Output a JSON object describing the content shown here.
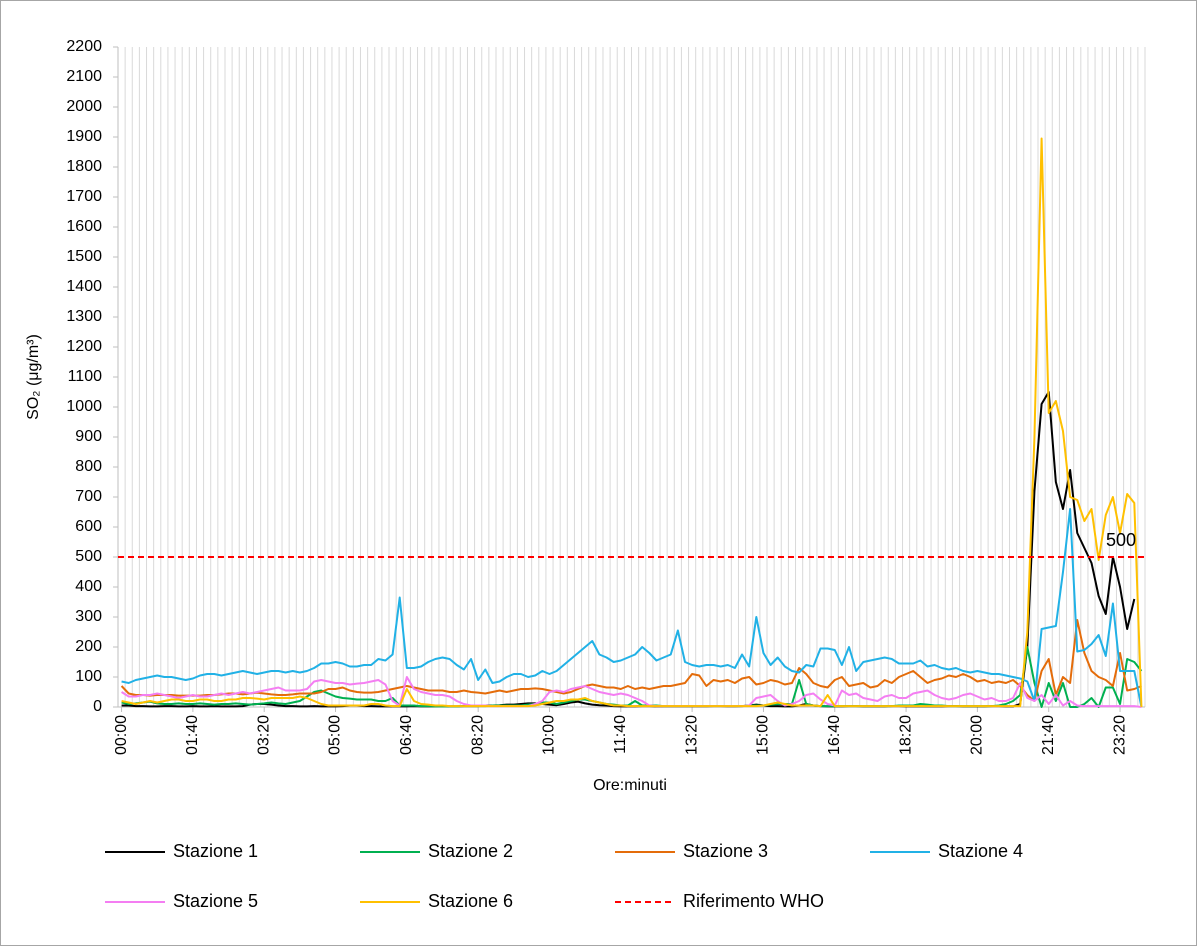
{
  "chart_data": {
    "type": "line",
    "ylabel": "SO₂ (μg/m³)",
    "xlabel": "Ore:minuti",
    "ylim": [
      0,
      2200
    ],
    "yticks": [
      0,
      100,
      200,
      300,
      400,
      500,
      600,
      700,
      800,
      900,
      1000,
      1100,
      1200,
      1300,
      1400,
      1500,
      1600,
      1700,
      1800,
      1900,
      2000,
      2100,
      2200
    ],
    "grid": "vertical",
    "categories": [
      "00:00",
      null,
      null,
      null,
      null,
      null,
      null,
      null,
      null,
      null,
      "01:40",
      null,
      null,
      null,
      null,
      null,
      null,
      null,
      null,
      null,
      "03:20",
      null,
      null,
      null,
      null,
      null,
      null,
      null,
      null,
      null,
      "05:00",
      null,
      null,
      null,
      null,
      null,
      null,
      null,
      null,
      null,
      "06:40",
      null,
      null,
      null,
      null,
      null,
      null,
      null,
      null,
      null,
      "08:20",
      null,
      null,
      null,
      null,
      null,
      null,
      null,
      null,
      null,
      "10:00",
      null,
      null,
      null,
      null,
      null,
      null,
      null,
      null,
      null,
      "11:40",
      null,
      null,
      null,
      null,
      null,
      null,
      null,
      null,
      null,
      "13:20",
      null,
      null,
      null,
      null,
      null,
      null,
      null,
      null,
      null,
      "15:00",
      null,
      null,
      null,
      null,
      null,
      null,
      null,
      null,
      null,
      "16:40",
      null,
      null,
      null,
      null,
      null,
      null,
      null,
      null,
      null,
      "18:20",
      null,
      null,
      null,
      null,
      null,
      null,
      null,
      null,
      null,
      "20:00",
      null,
      null,
      null,
      null,
      null,
      null,
      null,
      null,
      null,
      "21:40",
      null,
      null,
      null,
      null,
      null,
      null,
      null,
      null,
      null,
      "23:20",
      null,
      null,
      null
    ],
    "series": [
      {
        "name": "Stazione 1",
        "color": "#000000",
        "values": [
          5,
          5,
          3,
          3,
          2,
          2,
          3,
          3,
          2,
          2,
          3,
          2,
          2,
          3,
          2,
          2,
          2,
          3,
          8,
          10,
          10,
          8,
          5,
          3,
          3,
          2,
          2,
          3,
          2,
          2,
          2,
          3,
          5,
          5,
          3,
          3,
          2,
          2,
          2,
          2,
          2,
          3,
          2,
          2,
          2,
          3,
          2,
          2,
          3,
          3,
          3,
          5,
          5,
          6,
          8,
          8,
          10,
          12,
          12,
          10,
          8,
          6,
          10,
          15,
          18,
          12,
          8,
          6,
          5,
          3,
          2,
          2,
          2,
          3,
          3,
          2,
          2,
          2,
          2,
          2,
          2,
          2,
          2,
          3,
          3,
          2,
          2,
          3,
          5,
          8,
          5,
          3,
          3,
          2,
          2,
          5,
          10,
          5,
          3,
          2,
          2,
          2,
          3,
          3,
          2,
          2,
          2,
          2,
          3,
          3,
          2,
          2,
          2,
          2,
          2,
          2,
          3,
          3,
          2,
          2,
          2,
          2,
          3,
          3,
          2,
          2,
          10,
          200,
          720,
          1010,
          1050,
          750,
          660,
          790,
          580,
          530,
          480,
          370,
          310,
          500,
          400,
          260,
          360,
          null
        ]
      },
      {
        "name": "Stazione 2",
        "color": "#00b050",
        "values": [
          15,
          10,
          12,
          15,
          18,
          12,
          10,
          10,
          12,
          10,
          10,
          12,
          10,
          8,
          10,
          10,
          12,
          10,
          8,
          10,
          12,
          15,
          12,
          10,
          15,
          20,
          35,
          50,
          55,
          45,
          35,
          30,
          28,
          25,
          25,
          25,
          20,
          20,
          30,
          5,
          5,
          5,
          3,
          3,
          2,
          2,
          2,
          2,
          3,
          3,
          3,
          3,
          5,
          5,
          5,
          5,
          5,
          8,
          10,
          15,
          15,
          10,
          15,
          20,
          25,
          25,
          20,
          15,
          10,
          8,
          5,
          5,
          20,
          5,
          5,
          5,
          3,
          3,
          3,
          3,
          3,
          3,
          3,
          3,
          3,
          3,
          3,
          3,
          5,
          5,
          5,
          8,
          10,
          10,
          10,
          90,
          10,
          5,
          3,
          3,
          3,
          3,
          3,
          3,
          3,
          3,
          3,
          3,
          3,
          5,
          5,
          5,
          10,
          8,
          5,
          5,
          3,
          3,
          3,
          3,
          3,
          3,
          3,
          5,
          10,
          20,
          40,
          200,
          80,
          0,
          80,
          20,
          80,
          0,
          0,
          10,
          30,
          0,
          65,
          65,
          10,
          160,
          150,
          120
        ]
      },
      {
        "name": "Stazione 3",
        "color": "#e46c0a",
        "values": [
          70,
          45,
          40,
          40,
          38,
          40,
          40,
          40,
          38,
          38,
          38,
          38,
          40,
          40,
          42,
          45,
          45,
          42,
          45,
          48,
          45,
          42,
          40,
          40,
          42,
          45,
          45,
          45,
          50,
          60,
          60,
          65,
          55,
          50,
          48,
          48,
          50,
          55,
          60,
          65,
          70,
          65,
          60,
          55,
          55,
          55,
          50,
          50,
          55,
          50,
          48,
          45,
          50,
          55,
          50,
          55,
          60,
          60,
          62,
          60,
          55,
          50,
          45,
          50,
          60,
          70,
          75,
          70,
          65,
          65,
          60,
          70,
          60,
          65,
          60,
          65,
          70,
          70,
          75,
          80,
          110,
          105,
          70,
          90,
          85,
          90,
          80,
          95,
          100,
          75,
          80,
          90,
          85,
          75,
          80,
          130,
          110,
          80,
          70,
          65,
          90,
          100,
          70,
          75,
          80,
          65,
          70,
          90,
          80,
          100,
          110,
          120,
          100,
          80,
          90,
          95,
          105,
          100,
          110,
          100,
          85,
          90,
          80,
          85,
          80,
          90,
          70,
          40,
          20,
          120,
          160,
          40,
          100,
          80,
          290,
          180,
          120,
          100,
          90,
          70,
          180,
          55,
          60,
          70
        ]
      },
      {
        "name": "Stazione 4",
        "color": "#21b1e6",
        "values": [
          85,
          80,
          90,
          95,
          100,
          105,
          100,
          100,
          95,
          90,
          95,
          105,
          110,
          110,
          105,
          110,
          115,
          120,
          115,
          110,
          115,
          120,
          120,
          115,
          120,
          115,
          120,
          130,
          145,
          145,
          150,
          145,
          135,
          135,
          140,
          140,
          160,
          155,
          175,
          365,
          130,
          130,
          135,
          150,
          160,
          165,
          160,
          140,
          125,
          160,
          90,
          125,
          80,
          85,
          100,
          110,
          110,
          100,
          105,
          120,
          110,
          120,
          140,
          160,
          180,
          200,
          220,
          175,
          165,
          150,
          155,
          165,
          175,
          200,
          180,
          155,
          165,
          175,
          255,
          150,
          140,
          135,
          140,
          140,
          135,
          140,
          130,
          175,
          135,
          300,
          180,
          140,
          165,
          135,
          120,
          115,
          140,
          135,
          195,
          195,
          190,
          140,
          200,
          120,
          150,
          155,
          160,
          165,
          160,
          145,
          145,
          145,
          155,
          135,
          140,
          130,
          125,
          130,
          120,
          115,
          120,
          115,
          110,
          110,
          105,
          100,
          95,
          85,
          20,
          260,
          265,
          270,
          450,
          660,
          185,
          190,
          210,
          240,
          170,
          345,
          120,
          120,
          120,
          0
        ]
      },
      {
        "name": "Stazione 5",
        "color": "#f47ef2",
        "values": [
          50,
          35,
          35,
          40,
          40,
          45,
          40,
          35,
          30,
          35,
          40,
          35,
          35,
          40,
          45,
          40,
          45,
          50,
          45,
          50,
          55,
          60,
          65,
          55,
          55,
          55,
          60,
          85,
          90,
          85,
          80,
          80,
          75,
          78,
          80,
          85,
          90,
          75,
          20,
          5,
          100,
          60,
          50,
          45,
          40,
          40,
          35,
          20,
          10,
          5,
          5,
          5,
          3,
          3,
          3,
          3,
          3,
          3,
          10,
          20,
          50,
          55,
          50,
          60,
          65,
          70,
          60,
          50,
          45,
          40,
          45,
          40,
          30,
          20,
          5,
          3,
          3,
          3,
          3,
          3,
          3,
          3,
          3,
          3,
          3,
          3,
          3,
          3,
          5,
          30,
          35,
          40,
          20,
          5,
          10,
          20,
          40,
          45,
          25,
          10,
          5,
          55,
          40,
          45,
          30,
          25,
          20,
          35,
          40,
          30,
          30,
          45,
          50,
          55,
          40,
          30,
          25,
          30,
          40,
          45,
          35,
          25,
          30,
          20,
          20,
          30,
          80,
          30,
          20,
          40,
          10,
          40,
          5,
          20,
          5,
          3,
          3,
          3,
          3,
          3,
          3,
          3,
          3,
          0
        ]
      },
      {
        "name": "Stazione 6",
        "color": "#ffc000",
        "values": [
          20,
          15,
          10,
          15,
          20,
          15,
          20,
          25,
          25,
          20,
          20,
          25,
          25,
          20,
          20,
          25,
          25,
          30,
          30,
          28,
          25,
          30,
          30,
          30,
          30,
          35,
          30,
          20,
          10,
          5,
          5,
          5,
          5,
          5,
          5,
          10,
          10,
          5,
          3,
          3,
          60,
          20,
          10,
          8,
          5,
          5,
          3,
          3,
          3,
          3,
          3,
          3,
          3,
          3,
          3,
          3,
          3,
          3,
          5,
          10,
          15,
          20,
          20,
          25,
          25,
          30,
          20,
          15,
          10,
          5,
          5,
          3,
          3,
          3,
          3,
          3,
          3,
          3,
          3,
          3,
          3,
          3,
          3,
          3,
          3,
          3,
          3,
          3,
          3,
          3,
          5,
          10,
          15,
          10,
          5,
          5,
          5,
          5,
          3,
          40,
          3,
          3,
          3,
          3,
          3,
          3,
          3,
          3,
          3,
          3,
          3,
          3,
          3,
          3,
          3,
          3,
          3,
          3,
          3,
          3,
          3,
          3,
          3,
          3,
          3,
          3,
          3,
          250,
          900,
          1895,
          980,
          1020,
          920,
          700,
          690,
          620,
          660,
          490,
          640,
          700,
          580,
          710,
          680,
          0
        ]
      }
    ],
    "reference": {
      "name": "Riferimento WHO",
      "value": 500,
      "color": "#ff0000"
    }
  }
}
